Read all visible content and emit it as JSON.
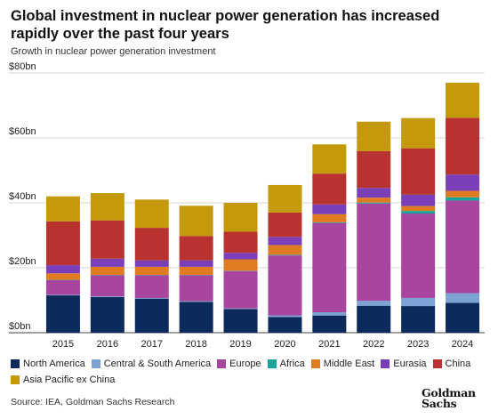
{
  "title": "Global investment in nuclear power generation has increased rapidly over the past four years",
  "subtitle": "Growth in nuclear power generation investment",
  "source": "Source: IEA, Goldman Sachs Research",
  "logo": {
    "line1": "Goldman",
    "line2": "Sachs"
  },
  "chart_data": {
    "type": "bar",
    "stacked": true,
    "title": "Global investment in nuclear power generation has increased rapidly over the past four years",
    "subtitle": "Growth in nuclear power generation investment",
    "categories": [
      "2015",
      "2016",
      "2017",
      "2018",
      "2019",
      "2020",
      "2021",
      "2022",
      "2023",
      "2024"
    ],
    "ylim": [
      0,
      80
    ],
    "yticks": [
      0,
      20,
      40,
      60,
      80
    ],
    "ytick_labels": [
      "$0bn",
      "$20bn",
      "$40bn",
      "$60bn",
      "$80bn"
    ],
    "grid": true,
    "legend_position": "bottom",
    "series": [
      {
        "name": "North America",
        "color": "#0d2a5c",
        "values": [
          11.5,
          11.0,
          10.5,
          9.5,
          7.3,
          4.8,
          5.3,
          8.3,
          8.2,
          9.2
        ]
      },
      {
        "name": "Central & South America",
        "color": "#7ca3d4",
        "values": [
          0.2,
          0.2,
          0.2,
          0.2,
          0.2,
          0.5,
          1.0,
          1.5,
          2.5,
          3.0
        ]
      },
      {
        "name": "Europe",
        "color": "#a8459e",
        "values": [
          4.5,
          6.5,
          7.0,
          8.0,
          11.5,
          18.5,
          27.5,
          30.0,
          26.0,
          28.5
        ]
      },
      {
        "name": "Africa",
        "color": "#1aa39a",
        "values": [
          0.1,
          0.1,
          0.1,
          0.1,
          0.1,
          0.2,
          0.2,
          0.3,
          0.8,
          1.0
        ]
      },
      {
        "name": "Middle East",
        "color": "#e07b22",
        "values": [
          2.0,
          2.5,
          2.5,
          2.5,
          3.5,
          3.0,
          2.5,
          1.5,
          1.5,
          2.0
        ]
      },
      {
        "name": "Eurasia",
        "color": "#7a3fb8",
        "values": [
          2.5,
          2.5,
          2.0,
          2.0,
          2.0,
          2.5,
          3.0,
          3.0,
          3.5,
          5.0
        ]
      },
      {
        "name": "China",
        "color": "#b83330",
        "values": [
          13.5,
          11.8,
          10.0,
          7.5,
          6.5,
          7.5,
          9.5,
          11.3,
          14.3,
          17.5
        ]
      },
      {
        "name": "Asia Pacific ex China",
        "color": "#c49a0c",
        "values": [
          7.7,
          8.4,
          8.7,
          9.3,
          8.9,
          8.5,
          9.0,
          9.1,
          9.3,
          10.8
        ]
      }
    ]
  }
}
